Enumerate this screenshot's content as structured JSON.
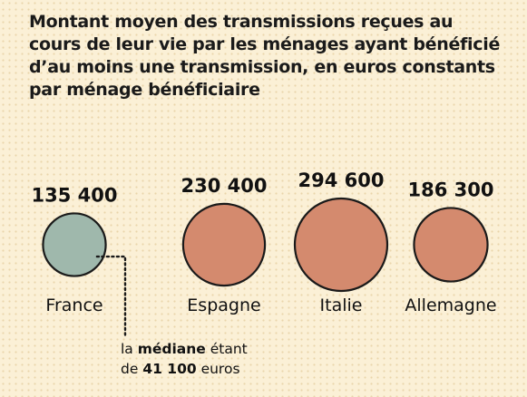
{
  "chart_data": {
    "type": "bubble",
    "title": "Montant moyen des transmissions reçues au cours de leur vie par les ménages ayant bénéficié d’au moins une transmission, en euros constants par ménage bénéficiaire",
    "categories": [
      "France",
      "Espagne",
      "Italie",
      "Allemagne"
    ],
    "values": [
      135400,
      230400,
      294600,
      186300
    ],
    "value_labels": [
      "135 400",
      "230 400",
      "294 600",
      "186 300"
    ],
    "colors": [
      "#9fb8ac",
      "#d48a6e",
      "#d48a6e",
      "#d48a6e"
    ],
    "outline_color": "#1a1a1a",
    "annotation": {
      "target": "France",
      "prefix": "la ",
      "bold_1": "médiane",
      "middle": " étant",
      "line2_prefix": "de ",
      "bold_2": "41 100",
      "suffix": " euros"
    }
  }
}
